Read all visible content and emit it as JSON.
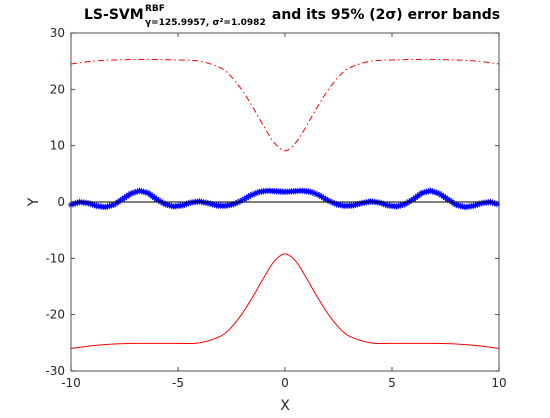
{
  "chart_data": {
    "type": "line",
    "title": {
      "main": "LS-SVM",
      "sup": "RBF",
      "sub": "γ=125.9957, σ²=1.0982",
      "rest": " and its 95% (2σ) error bands"
    },
    "xlabel": "X",
    "ylabel": "Y",
    "xlim": [
      -10,
      10
    ],
    "ylim": [
      -30,
      30
    ],
    "xticks": [
      -10,
      -5,
      0,
      5,
      10
    ],
    "xtick_labels": [
      "-10",
      "-5",
      "0",
      "5",
      "10"
    ],
    "yticks": [
      -30,
      -20,
      -10,
      0,
      10,
      20,
      30
    ],
    "ytick_labels": [
      "-30",
      "-20",
      "-10",
      "0",
      "10",
      "20",
      "30"
    ],
    "grid": false,
    "series": [
      {
        "style": "blue-asterisk-markers",
        "color": "#0000ff",
        "x": [
          -10,
          -9.6,
          -9.2,
          -8.8,
          -8.4,
          -8.0,
          -7.6,
          -7.2,
          -6.8,
          -6.4,
          -6.0,
          -5.6,
          -5.2,
          -4.8,
          -4.4,
          -4.0,
          -3.6,
          -3.2,
          -2.8,
          -2.4,
          -2.0,
          -1.6,
          -1.2,
          -0.8,
          -0.4,
          0,
          0.4,
          0.8,
          1.2,
          1.6,
          2.0,
          2.4,
          2.8,
          3.2,
          3.6,
          4.0,
          4.4,
          4.8,
          5.2,
          5.6,
          6.0,
          6.4,
          6.8,
          7.2,
          7.6,
          8.0,
          8.4,
          8.8,
          9.2,
          9.6,
          10
        ],
        "y": [
          -0.5,
          0.0,
          -0.2,
          -0.7,
          -0.9,
          -0.5,
          0.5,
          1.5,
          2.0,
          1.6,
          0.5,
          -0.4,
          -0.8,
          -0.6,
          -0.1,
          0.1,
          -0.2,
          -0.6,
          -0.7,
          -0.4,
          0.3,
          1.2,
          1.8,
          2.0,
          1.9,
          1.8,
          1.9,
          2.0,
          1.8,
          1.2,
          0.3,
          -0.4,
          -0.7,
          -0.6,
          -0.2,
          0.1,
          -0.1,
          -0.6,
          -0.8,
          -0.4,
          0.5,
          1.6,
          2.0,
          1.5,
          0.5,
          -0.5,
          -0.9,
          -0.7,
          -0.2,
          0.0,
          -0.5
        ]
      },
      {
        "style": "black-solid",
        "color": "#000000",
        "x": [
          -10,
          10
        ],
        "y": [
          0,
          0
        ]
      },
      {
        "style": "red-dashdot-upper-band",
        "color": "#ff0000",
        "x": [
          -10,
          -9,
          -8,
          -7,
          -6,
          -5,
          -4,
          -3,
          -2.5,
          -2,
          -1.5,
          -1,
          -0.5,
          0,
          0.5,
          1,
          1.5,
          2,
          2.5,
          3,
          4,
          5,
          6,
          7,
          8,
          9,
          10
        ],
        "y": [
          24.5,
          25.0,
          25.2,
          25.3,
          25.3,
          25.2,
          25.0,
          23.8,
          22.2,
          19.8,
          16.8,
          13.5,
          10.5,
          9.1,
          10.5,
          13.5,
          16.8,
          19.8,
          22.2,
          23.8,
          25.0,
          25.2,
          25.3,
          25.3,
          25.2,
          25.0,
          24.5
        ]
      },
      {
        "style": "red-solid-lower-band",
        "color": "#ff0000",
        "x": [
          -10,
          -9,
          -8,
          -7,
          -6,
          -5,
          -4,
          -3,
          -2.5,
          -2,
          -1.5,
          -1,
          -0.5,
          0,
          0.5,
          1,
          1.5,
          2,
          2.5,
          3,
          4,
          5,
          6,
          7,
          8,
          9,
          10
        ],
        "y": [
          -26.0,
          -25.5,
          -25.2,
          -25.1,
          -25.1,
          -25.1,
          -25.0,
          -23.8,
          -22.2,
          -19.8,
          -16.8,
          -13.5,
          -10.5,
          -9.2,
          -10.5,
          -13.5,
          -16.8,
          -19.8,
          -22.2,
          -23.8,
          -25.0,
          -25.1,
          -25.1,
          -25.1,
          -25.2,
          -25.5,
          -26.0
        ]
      }
    ]
  }
}
